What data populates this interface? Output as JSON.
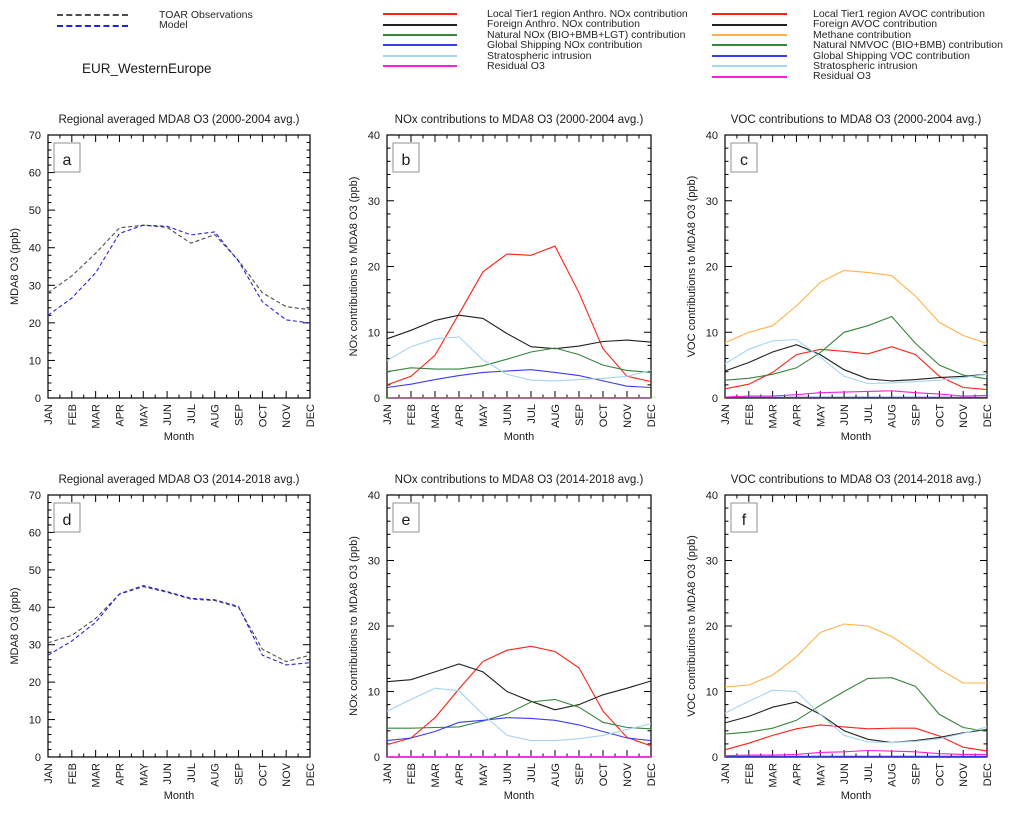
{
  "region_label": "EUR_WesternEurope",
  "colors": {
    "obs": "#4d4d4d",
    "model": "#2323dc",
    "local_red": "#ff2015",
    "foreign_black": "#202020",
    "natural_green": "#35853c",
    "shipping_blue": "#3b3bf2",
    "strat_skyblue": "#a5d5ef",
    "residual_magenta": "#ff1ede",
    "methane_orange": "#ffb24a",
    "axis": "#000000"
  },
  "legends": {
    "obs_model": {
      "items": [
        {
          "label": "TOAR Observations",
          "color": "#4d4d4d",
          "dash": true
        },
        {
          "label": "Model",
          "color": "#2323dc",
          "dash": true
        }
      ]
    },
    "nox": {
      "items": [
        {
          "label": "Local Tier1 region Anthro. NOx contribution",
          "color": "#ff2015",
          "dash": false
        },
        {
          "label": "Foreign Anthro. NOx contribution",
          "color": "#202020",
          "dash": false
        },
        {
          "label": "Natural NOx (BIO+BMB+LGT) contribution",
          "color": "#35853c",
          "dash": false
        },
        {
          "label": "Global Shipping NOx contribution",
          "color": "#3b3bf2",
          "dash": false
        },
        {
          "label": "Stratospheric intrusion",
          "color": "#a5d5ef",
          "dash": false
        },
        {
          "label": "Residual O3",
          "color": "#ff1ede",
          "dash": false
        }
      ]
    },
    "voc": {
      "items": [
        {
          "label": "Local Tier1 region AVOC contribution",
          "color": "#ff2015",
          "dash": false
        },
        {
          "label": "Foreign AVOC contribution",
          "color": "#202020",
          "dash": false
        },
        {
          "label": "Methane contribution",
          "color": "#ffb24a",
          "dash": false
        },
        {
          "label": "Natural NMVOC (BIO+BMB) contribution",
          "color": "#35853c",
          "dash": false
        },
        {
          "label": "Global Shipping VOC contribution",
          "color": "#3b3bf2",
          "dash": false
        },
        {
          "label": "Stratospheric intrusion",
          "color": "#a5d5ef",
          "dash": false
        },
        {
          "label": "Residual O3",
          "color": "#ff1ede",
          "dash": false
        }
      ]
    }
  },
  "chart_data": [
    {
      "id": "a",
      "type": "line",
      "title": "Regional averaged MDA8 O3 (2000-2004 avg.)",
      "xlabel": "Month",
      "ylabel": "MDA8 O3 (ppb)",
      "ylim": [
        0,
        70
      ],
      "ytick_step": 10,
      "yminor_step": 2,
      "grid": false,
      "categories": [
        "JAN",
        "FEB",
        "MAR",
        "APR",
        "MAY",
        "JUN",
        "JUL",
        "AUG",
        "SEP",
        "OCT",
        "NOV",
        "DEC"
      ],
      "series": [
        {
          "name": "TOAR Observations",
          "color": "#4d4d4d",
          "dash": true,
          "values": [
            28,
            32.5,
            38.5,
            45.3,
            46,
            45.4,
            41.2,
            43.5,
            36.6,
            28,
            24.3,
            23.5
          ]
        },
        {
          "name": "Model",
          "color": "#2323dc",
          "dash": true,
          "values": [
            22,
            26.6,
            33.3,
            43.8,
            46,
            45.7,
            43.4,
            44.2,
            36.4,
            25.6,
            20.8,
            20
          ]
        }
      ]
    },
    {
      "id": "b",
      "type": "line",
      "title": "NOx contributions to MDA8 O3 (2000-2004 avg.)",
      "xlabel": "Month",
      "ylabel": "NOx contributions to MDA8 O3 (ppb)",
      "ylim": [
        0,
        40
      ],
      "ytick_step": 10,
      "yminor_step": 2,
      "grid": false,
      "categories": [
        "JAN",
        "FEB",
        "MAR",
        "APR",
        "MAY",
        "JUN",
        "JUL",
        "AUG",
        "SEP",
        "OCT",
        "NOV",
        "DEC"
      ],
      "series": [
        {
          "name": "Local Tier1 region Anthro. NOx contribution",
          "color": "#ff2015",
          "dash": false,
          "values": [
            2,
            3.3,
            6.5,
            12.8,
            19.2,
            21.9,
            21.7,
            23.1,
            16,
            7.5,
            3.3,
            2.5
          ]
        },
        {
          "name": "Foreign Anthro. NOx contribution",
          "color": "#202020",
          "dash": false,
          "values": [
            9,
            10.3,
            11.8,
            12.6,
            12.1,
            9.8,
            7.8,
            7.5,
            7.9,
            8.6,
            8.8,
            8.5
          ]
        },
        {
          "name": "Natural NOx (BIO+BMB+LGT) contribution",
          "color": "#35853c",
          "dash": false,
          "values": [
            4,
            4.6,
            4.4,
            4.4,
            4.9,
            5.9,
            7,
            7.6,
            6.6,
            5,
            4.2,
            3.9
          ]
        },
        {
          "name": "Global Shipping NOx contribution",
          "color": "#3b3bf2",
          "dash": false,
          "values": [
            1.6,
            2.1,
            2.8,
            3.4,
            3.9,
            4.1,
            4.3,
            3.9,
            3.4,
            2.6,
            1.8,
            1.6
          ]
        },
        {
          "name": "Stratospheric intrusion",
          "color": "#a5d5ef",
          "dash": false,
          "values": [
            5.7,
            7.8,
            9,
            9.3,
            5.8,
            3.6,
            2.7,
            2.6,
            2.8,
            3,
            3.3,
            4.2
          ]
        },
        {
          "name": "Residual O3",
          "color": "#ff1ede",
          "dash": false,
          "values": [
            0.05,
            0.05,
            0.05,
            0.05,
            0.05,
            0.05,
            0.05,
            0.05,
            0.05,
            0.05,
            0.05,
            0.05
          ]
        }
      ]
    },
    {
      "id": "c",
      "type": "line",
      "title": "VOC contributions to MDA8 O3 (2000-2004 avg.)",
      "xlabel": "Month",
      "ylabel": "VOC contributions to MDA8 O3 (ppb)",
      "ylim": [
        0,
        40
      ],
      "ytick_step": 10,
      "yminor_step": 2,
      "grid": false,
      "categories": [
        "JAN",
        "FEB",
        "MAR",
        "APR",
        "MAY",
        "JUN",
        "JUL",
        "AUG",
        "SEP",
        "OCT",
        "NOV",
        "DEC"
      ],
      "series": [
        {
          "name": "Local Tier1 region AVOC contribution",
          "color": "#ff2015",
          "dash": false,
          "values": [
            1.4,
            2.1,
            3.9,
            6.6,
            7.4,
            7.1,
            6.7,
            7.8,
            6.6,
            3.3,
            1.6,
            1.3
          ]
        },
        {
          "name": "Foreign AVOC contribution",
          "color": "#202020",
          "dash": false,
          "values": [
            4.1,
            5.4,
            7,
            8.1,
            6.6,
            4.3,
            2.9,
            2.6,
            2.8,
            3.1,
            3.3,
            3.6
          ]
        },
        {
          "name": "Methane contribution",
          "color": "#ffb24a",
          "dash": false,
          "values": [
            8.4,
            10,
            11,
            14,
            17.6,
            19.4,
            19.1,
            18.6,
            15.5,
            11.5,
            9.5,
            8.3
          ]
        },
        {
          "name": "Natural NMVOC (BIO+BMB) contribution",
          "color": "#35853c",
          "dash": false,
          "values": [
            2.7,
            3,
            3.6,
            4.6,
            6.9,
            10,
            11,
            12.4,
            8.3,
            5,
            3.5,
            2.9
          ]
        },
        {
          "name": "Global Shipping VOC contribution",
          "color": "#3b3bf2",
          "dash": false,
          "values": [
            0.1,
            0.1,
            0.1,
            0.1,
            0.1,
            0.1,
            0.1,
            0.1,
            0.1,
            0.1,
            0.1,
            0.1
          ]
        },
        {
          "name": "Stratospheric intrusion",
          "color": "#a5d5ef",
          "dash": false,
          "values": [
            5.2,
            7.4,
            8.7,
            8.9,
            6.2,
            3.3,
            2.2,
            2.3,
            2.5,
            2.7,
            3.1,
            3.6
          ]
        },
        {
          "name": "Residual O3",
          "color": "#ff1ede",
          "dash": false,
          "values": [
            0.15,
            0.3,
            0.3,
            0.5,
            0.8,
            0.9,
            1,
            1.1,
            0.8,
            0.6,
            0.3,
            0.4
          ]
        }
      ]
    },
    {
      "id": "d",
      "type": "line",
      "title": "Regional averaged MDA8 O3 (2014-2018 avg.)",
      "xlabel": "Month",
      "ylabel": "MDA8 O3 (ppb)",
      "ylim": [
        0,
        70
      ],
      "ytick_step": 10,
      "yminor_step": 2,
      "grid": false,
      "categories": [
        "JAN",
        "FEB",
        "MAR",
        "APR",
        "MAY",
        "JUN",
        "JUL",
        "AUG",
        "SEP",
        "OCT",
        "NOV",
        "DEC"
      ],
      "series": [
        {
          "name": "TOAR Observations",
          "color": "#4d4d4d",
          "dash": true,
          "values": [
            30.5,
            32.5,
            37,
            43.5,
            45.5,
            44,
            42.2,
            41.8,
            40,
            28.8,
            25.5,
            27.2
          ]
        },
        {
          "name": "Model",
          "color": "#2323dc",
          "dash": true,
          "values": [
            27.2,
            31,
            36,
            43.6,
            45.8,
            44.2,
            42.4,
            42,
            40.2,
            27.2,
            24.6,
            25.2
          ]
        }
      ]
    },
    {
      "id": "e",
      "type": "line",
      "title": "NOx contributions to MDA8 O3 (2014-2018 avg.)",
      "xlabel": "Month",
      "ylabel": "NOx contributions to MDA8 O3 (ppb)",
      "ylim": [
        0,
        40
      ],
      "ytick_step": 10,
      "yminor_step": 2,
      "grid": false,
      "categories": [
        "JAN",
        "FEB",
        "MAR",
        "APR",
        "MAY",
        "JUN",
        "JUL",
        "AUG",
        "SEP",
        "OCT",
        "NOV",
        "DEC"
      ],
      "series": [
        {
          "name": "Local Tier1 region Anthro. NOx contribution",
          "color": "#ff2015",
          "dash": false,
          "values": [
            1.9,
            2.9,
            6,
            10.4,
            14.6,
            16.3,
            16.9,
            16.1,
            13.6,
            7,
            3,
            1.7
          ]
        },
        {
          "name": "Foreign Anthro. NOx contribution",
          "color": "#202020",
          "dash": false,
          "values": [
            11.5,
            11.8,
            13,
            14.2,
            13,
            10,
            8.5,
            7.2,
            8,
            9.5,
            10.5,
            11.6
          ]
        },
        {
          "name": "Natural NOx (BIO+BMB+LGT) contribution",
          "color": "#35853c",
          "dash": false,
          "values": [
            4.4,
            4.4,
            4.5,
            4.6,
            5.5,
            6.6,
            8.4,
            8.8,
            7.6,
            5.3,
            4.5,
            4.3
          ]
        },
        {
          "name": "Global Shipping NOx contribution",
          "color": "#3b3bf2",
          "dash": false,
          "values": [
            2.5,
            2.9,
            3.9,
            5.3,
            5.6,
            6,
            5.9,
            5.6,
            4.9,
            3.9,
            2.9,
            2.5
          ]
        },
        {
          "name": "Stratospheric intrusion",
          "color": "#a5d5ef",
          "dash": false,
          "values": [
            7,
            8.8,
            10.5,
            10.1,
            6.5,
            3.3,
            2.5,
            2.5,
            2.8,
            3.3,
            4.2,
            5.1
          ]
        },
        {
          "name": "Residual O3",
          "color": "#ff1ede",
          "dash": false,
          "values": [
            0.05,
            0.05,
            0.05,
            0.05,
            0.05,
            0.05,
            0.05,
            0.05,
            0.05,
            0.05,
            0.05,
            0.05
          ]
        }
      ]
    },
    {
      "id": "f",
      "type": "line",
      "title": "VOC contributions to MDA8 O3 (2014-2018 avg.)",
      "xlabel": "Month",
      "ylabel": "VOC contributions to MDA8 O3 (ppb)",
      "ylim": [
        0,
        40
      ],
      "ytick_step": 10,
      "yminor_step": 2,
      "grid": false,
      "categories": [
        "JAN",
        "FEB",
        "MAR",
        "APR",
        "MAY",
        "JUN",
        "JUL",
        "AUG",
        "SEP",
        "OCT",
        "NOV",
        "DEC"
      ],
      "series": [
        {
          "name": "Local Tier1 region AVOC contribution",
          "color": "#ff2015",
          "dash": false,
          "values": [
            1.1,
            2.1,
            3.3,
            4.3,
            4.9,
            4.6,
            4.3,
            4.4,
            4.4,
            3.2,
            1.5,
            0.9
          ]
        },
        {
          "name": "Foreign AVOC contribution",
          "color": "#202020",
          "dash": false,
          "values": [
            5.2,
            6.2,
            7.6,
            8.4,
            6.5,
            4,
            2.7,
            2.2,
            2.5,
            3,
            3.7,
            4.2
          ]
        },
        {
          "name": "Methane contribution",
          "color": "#ffb24a",
          "dash": false,
          "values": [
            10.7,
            11,
            12.5,
            15.3,
            19,
            20.3,
            20,
            18.4,
            16,
            13.4,
            11.3,
            11.3
          ]
        },
        {
          "name": "Natural NMVOC (BIO+BMB) contribution",
          "color": "#35853c",
          "dash": false,
          "values": [
            3.5,
            3.8,
            4.4,
            5.6,
            7.9,
            10,
            12,
            12.1,
            10.8,
            6.5,
            4.5,
            3.9
          ]
        },
        {
          "name": "Global Shipping VOC contribution",
          "color": "#3b3bf2",
          "dash": false,
          "values": [
            0.1,
            0.1,
            0.1,
            0.1,
            0.1,
            0.1,
            0.1,
            0.1,
            0.1,
            0.1,
            0.1,
            0.1
          ]
        },
        {
          "name": "Stratospheric intrusion",
          "color": "#a5d5ef",
          "dash": false,
          "values": [
            6.7,
            8.5,
            10.2,
            10,
            6.5,
            3.3,
            2.3,
            2.2,
            2.4,
            2.8,
            3.6,
            4.6
          ]
        },
        {
          "name": "Residual O3",
          "color": "#ff1ede",
          "dash": false,
          "values": [
            0.2,
            0.3,
            0.3,
            0.4,
            0.7,
            0.8,
            1,
            0.9,
            0.8,
            0.5,
            0.4,
            0.4
          ]
        }
      ]
    }
  ]
}
